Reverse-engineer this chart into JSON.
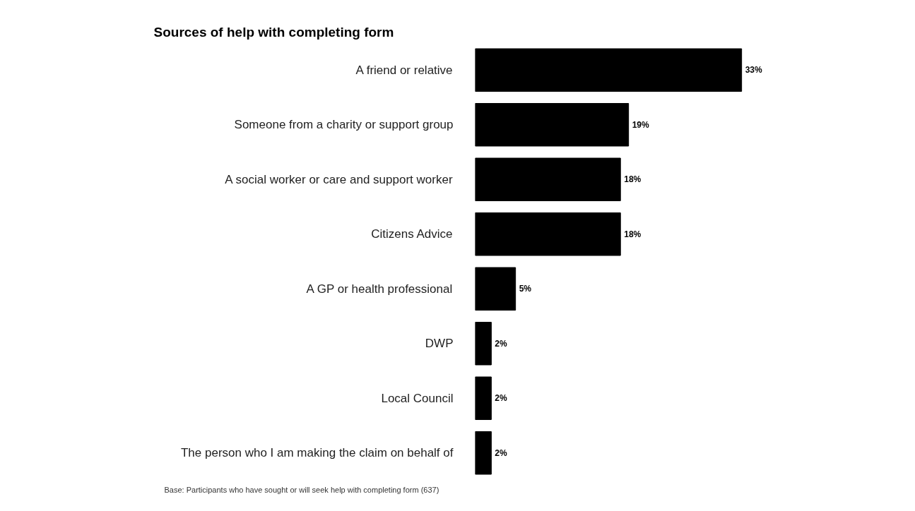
{
  "chart_data": {
    "type": "bar",
    "orientation": "horizontal",
    "title": "Sources of help with completing form",
    "categories": [
      "A friend or relative",
      "Someone from a charity or support group",
      "A social worker or care and support worker",
      "Citizens Advice",
      "A GP or health professional",
      "DWP",
      "Local Council",
      "The person who I am making the claim on behalf of"
    ],
    "values": [
      33,
      19,
      18,
      18,
      5,
      2,
      2,
      2
    ],
    "value_labels": [
      "33%",
      "19%",
      "18%",
      "18%",
      "5%",
      "2%",
      "2%",
      "2%"
    ],
    "color": "#000000",
    "grid": false,
    "tick_labels": "y",
    "annotations": [
      "Base: Participants who have sought or will seek help with completing form (637)"
    ]
  }
}
